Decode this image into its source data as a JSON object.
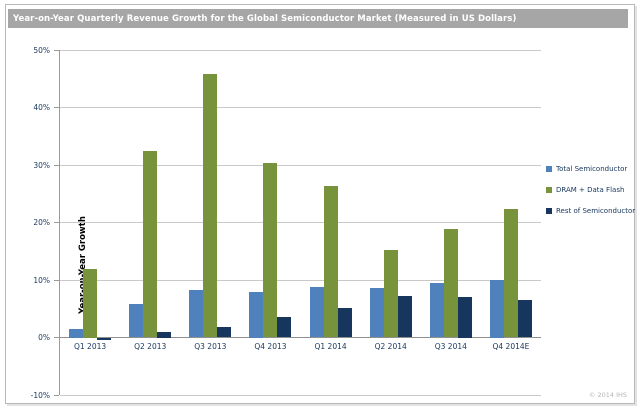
{
  "header": {
    "title": "Year-on-Year Quarterly Revenue Growth for the Global Semiconductor Market (Measured in US Dollars)",
    "title_bar_color": "#a6a6a6"
  },
  "footer": {
    "copyright": "© 2014 IHS"
  },
  "chart_data": {
    "type": "bar",
    "title": "Year-on-Year Quarterly Revenue Growth for the Global Semiconductor Market (Measured in US Dollars)",
    "xlabel": "",
    "ylabel": "Year-on-Year Growth",
    "ylim": [
      -10,
      50
    ],
    "yticks": [
      {
        "value": 50,
        "label": "50%"
      },
      {
        "value": 40,
        "label": "40%"
      },
      {
        "value": 30,
        "label": "30%"
      },
      {
        "value": 20,
        "label": "20%"
      },
      {
        "value": 10,
        "label": "10%"
      },
      {
        "value": 0,
        "label": "0%"
      },
      {
        "value": -10,
        "label": "-10%"
      }
    ],
    "grid": true,
    "legend_position": "right",
    "categories": [
      "Q1 2013",
      "Q2 2013",
      "Q3 2013",
      "Q4 2013",
      "Q1 2014",
      "Q2 2014",
      "Q3 2014",
      "Q4 2014E"
    ],
    "series": [
      {
        "name": "Total Semiconductor",
        "color": "#4f81bd",
        "values": [
          1.5,
          5.8,
          8.2,
          8.0,
          8.8,
          8.6,
          9.4,
          10.0
        ]
      },
      {
        "name": "DRAM + Data Flash",
        "color": "#77933c",
        "values": [
          12.0,
          32.4,
          45.9,
          30.3,
          26.3,
          15.3,
          18.9,
          22.4
        ]
      },
      {
        "name": "Rest of Semiconductor",
        "color": "#17365d",
        "values": [
          -0.5,
          1.0,
          1.9,
          3.6,
          5.2,
          7.2,
          7.0,
          6.6
        ]
      }
    ],
    "colors": {
      "gridline": "#c9c9c9",
      "zero_line": "#8f8f8f",
      "tick_label": "#17365d",
      "axis_title": "#000000"
    }
  }
}
